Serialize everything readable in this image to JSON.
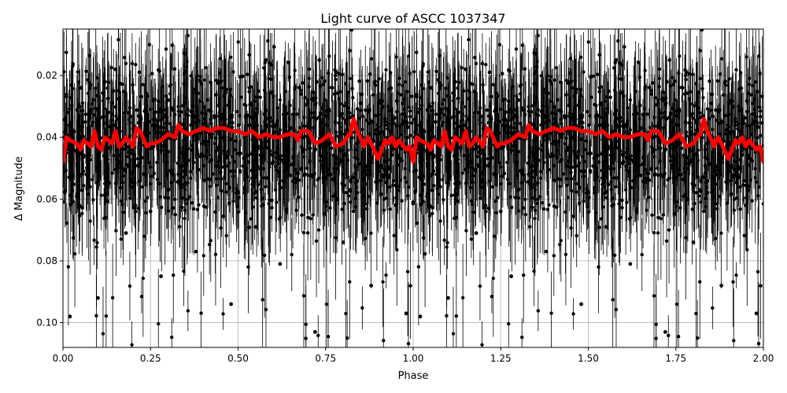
{
  "chart_data": {
    "type": "scatter",
    "title": "Light curve of ASCC 1037347",
    "xlabel": "Phase",
    "ylabel": "Δ Magnitude",
    "xlim": [
      0.0,
      2.0
    ],
    "ylim": [
      0.108,
      0.005
    ],
    "y_inverted": true,
    "grid": true,
    "x_ticks": [
      0.0,
      0.25,
      0.5,
      0.75,
      1.0,
      1.25,
      1.5,
      1.75,
      2.0
    ],
    "x_tick_labels": [
      "0.00",
      "0.25",
      "0.50",
      "0.75",
      "1.00",
      "1.25",
      "1.50",
      "1.75",
      "2.00"
    ],
    "y_ticks": [
      0.02,
      0.04,
      0.06,
      0.08,
      0.1
    ],
    "y_tick_labels": [
      "0.02",
      "0.04",
      "0.06",
      "0.08",
      "0.10"
    ],
    "series": [
      {
        "style": "points-with-errorbars",
        "color": "#000000",
        "phase_period": 1.0,
        "baseline": 0.042,
        "scatter_halfwidth": 0.03,
        "outlier_range": [
          0.005,
          0.108
        ],
        "x": [
          0.0,
          0.02,
          0.05,
          0.08,
          0.1,
          0.12,
          0.15,
          0.18,
          0.2,
          0.22,
          0.25,
          0.28,
          0.3,
          0.33,
          0.35,
          0.38,
          0.4,
          0.42,
          0.45,
          0.48,
          0.5,
          0.53,
          0.55,
          0.58,
          0.6,
          0.62,
          0.65,
          0.68,
          0.7,
          0.72,
          0.75,
          0.78,
          0.8,
          0.82,
          0.85,
          0.88,
          0.9,
          0.92,
          0.95,
          0.98
        ],
        "y": [
          0.061,
          0.098,
          0.024,
          0.031,
          0.092,
          0.055,
          0.018,
          0.071,
          0.042,
          0.035,
          0.064,
          0.085,
          0.028,
          0.052,
          0.013,
          0.077,
          0.046,
          0.039,
          0.022,
          0.094,
          0.058,
          0.033,
          0.069,
          0.015,
          0.048,
          0.081,
          0.037,
          0.026,
          0.066,
          0.103,
          0.043,
          0.019,
          0.074,
          0.057,
          0.029,
          0.088,
          0.051,
          0.035,
          0.062,
          0.097
        ]
      },
      {
        "style": "line",
        "color": "#ff0000",
        "x": [
          0.0,
          0.01,
          0.02,
          0.04,
          0.05,
          0.06,
          0.08,
          0.09,
          0.1,
          0.11,
          0.12,
          0.14,
          0.15,
          0.16,
          0.17,
          0.18,
          0.2,
          0.21,
          0.22,
          0.24,
          0.25,
          0.26,
          0.28,
          0.3,
          0.32,
          0.33,
          0.34,
          0.36,
          0.38,
          0.4,
          0.42,
          0.44,
          0.46,
          0.48,
          0.5,
          0.52,
          0.54,
          0.56,
          0.58,
          0.6,
          0.62,
          0.64,
          0.66,
          0.67,
          0.68,
          0.7,
          0.72,
          0.74,
          0.75,
          0.76,
          0.78,
          0.8,
          0.81,
          0.82,
          0.83,
          0.84,
          0.86,
          0.87,
          0.88,
          0.9,
          0.92,
          0.93,
          0.94,
          0.95,
          0.96,
          0.98,
          0.99,
          1.0
        ],
        "y": [
          0.048,
          0.04,
          0.041,
          0.042,
          0.044,
          0.041,
          0.043,
          0.038,
          0.043,
          0.044,
          0.04,
          0.042,
          0.038,
          0.043,
          0.042,
          0.04,
          0.043,
          0.037,
          0.038,
          0.043,
          0.042,
          0.042,
          0.041,
          0.039,
          0.04,
          0.036,
          0.038,
          0.039,
          0.038,
          0.037,
          0.038,
          0.037,
          0.037,
          0.038,
          0.038,
          0.039,
          0.038,
          0.04,
          0.039,
          0.04,
          0.04,
          0.039,
          0.039,
          0.041,
          0.038,
          0.038,
          0.042,
          0.041,
          0.04,
          0.039,
          0.043,
          0.042,
          0.04,
          0.039,
          0.034,
          0.038,
          0.043,
          0.04,
          0.042,
          0.047,
          0.041,
          0.042,
          0.04,
          0.043,
          0.041,
          0.044,
          0.043,
          0.048
        ]
      }
    ]
  }
}
